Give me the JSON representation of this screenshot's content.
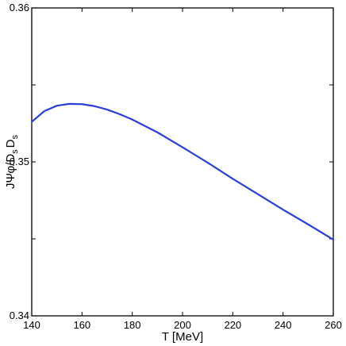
{
  "chart_data": {
    "type": "line",
    "title": "",
    "xlabel": "T [MeV]",
    "ylabel_parts": {
      "main": "JΨφ/D",
      "sub1": "s",
      "mid": "D",
      "sub2": "s"
    },
    "xlim": [
      140,
      260
    ],
    "ylim": [
      0.34,
      0.36
    ],
    "x_ticks": [
      140,
      160,
      180,
      200,
      220,
      240,
      260
    ],
    "x_tick_labels": [
      "140",
      "160",
      "180",
      "200",
      "220",
      "240",
      "260"
    ],
    "y_ticks": [
      0.34,
      0.345,
      0.35,
      0.355,
      0.36
    ],
    "y_tick_labels": [
      "0.34",
      "",
      "0.35",
      "",
      "0.36"
    ],
    "grid": false,
    "series": [
      {
        "color": "#2b3fd9",
        "x": [
          140,
          145,
          150,
          155,
          160,
          165,
          170,
          175,
          180,
          190,
          200,
          210,
          220,
          230,
          240,
          250,
          260
        ],
        "y": [
          0.3526,
          0.3533,
          0.35365,
          0.35377,
          0.35375,
          0.35362,
          0.3534,
          0.3531,
          0.35275,
          0.35192,
          0.35095,
          0.34995,
          0.3489,
          0.3479,
          0.3469,
          0.34594,
          0.34495
        ]
      }
    ]
  }
}
